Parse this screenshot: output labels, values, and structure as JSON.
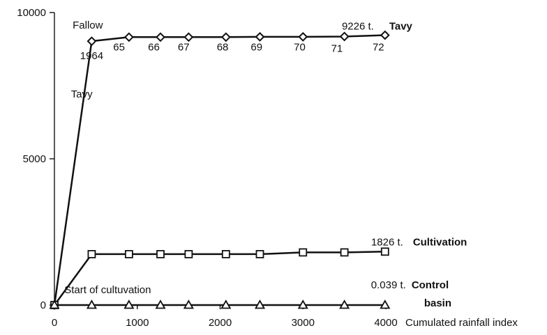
{
  "chart_data": {
    "type": "line",
    "xlabel": "Cumulated rainfall index",
    "ylabel": "",
    "xlim": [
      0,
      4000
    ],
    "ylim": [
      0,
      10000
    ],
    "x_ticks": [
      0,
      1000,
      2000,
      3000,
      4000
    ],
    "y_ticks": [
      0,
      5000,
      10000
    ],
    "series": [
      {
        "marker": "diamond",
        "line_width": 2.5,
        "x": [
          0,
          450,
          900,
          1280,
          1620,
          2070,
          2480,
          3000,
          3500,
          3990
        ],
        "y": [
          0,
          9020,
          9160,
          9160,
          9160,
          9160,
          9170,
          9170,
          9180,
          9226
        ],
        "end_value": "9226 t.",
        "end_label": "Tavy"
      },
      {
        "marker": "square",
        "line_width": 2.5,
        "x": [
          0,
          450,
          900,
          1280,
          1620,
          2070,
          2480,
          3000,
          3500,
          3990
        ],
        "y": [
          0,
          1740,
          1740,
          1740,
          1740,
          1740,
          1740,
          1800,
          1800,
          1826
        ],
        "end_value": "1826 t.",
        "end_label": "Cultivation"
      },
      {
        "marker": "triangle",
        "line_width": 2.5,
        "x": [
          0,
          450,
          900,
          1280,
          1620,
          2070,
          2480,
          3000,
          3500,
          3990
        ],
        "y": [
          0,
          0,
          0,
          0,
          0,
          0.02,
          0.02,
          0.03,
          0.03,
          0.039
        ],
        "end_value": "0.039 t.",
        "end_label": "Control basin"
      }
    ],
    "year_labels": [
      {
        "text": "1964",
        "x": 450,
        "y": 8400
      },
      {
        "text": "65",
        "x": 780,
        "y": 8700
      },
      {
        "text": "66",
        "x": 1200,
        "y": 8700
      },
      {
        "text": "67",
        "x": 1560,
        "y": 8700
      },
      {
        "text": "68",
        "x": 2030,
        "y": 8700
      },
      {
        "text": "69",
        "x": 2440,
        "y": 8700
      },
      {
        "text": "70",
        "x": 2960,
        "y": 8700
      },
      {
        "text": "71",
        "x": 3410,
        "y": 8650
      },
      {
        "text": "72",
        "x": 3910,
        "y": 8700
      }
    ],
    "annotations": [
      {
        "text": "Fallow",
        "x": 220,
        "y": 9450
      },
      {
        "text": "Tavy",
        "x": 200,
        "y": 7100
      },
      {
        "text": "Start of cultuvation",
        "x": 120,
        "y": 400
      }
    ]
  }
}
